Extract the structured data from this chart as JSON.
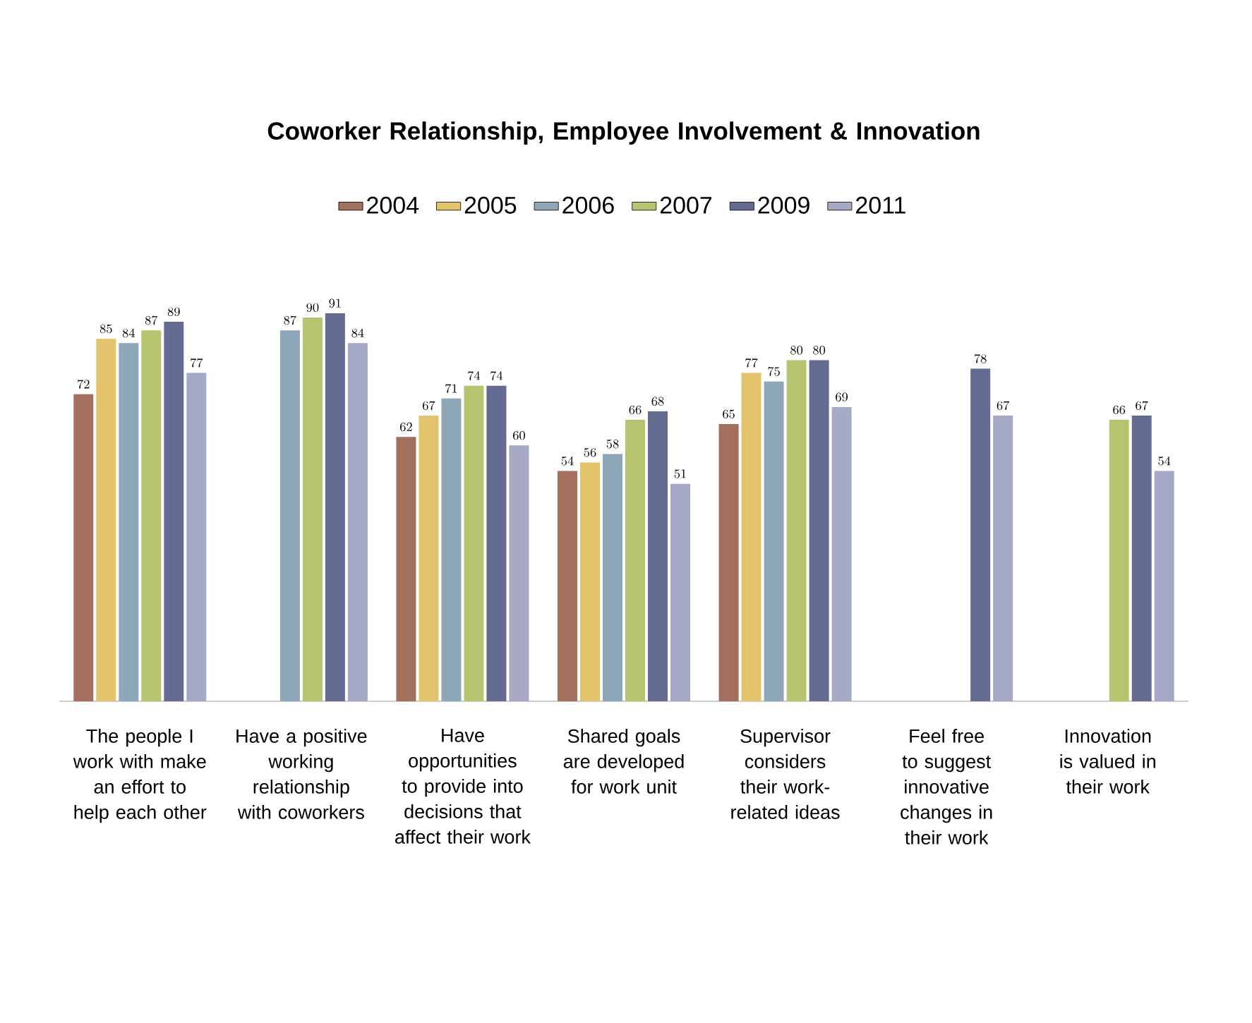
{
  "chart_data": {
    "type": "bar",
    "title": "Coworker Relationship, Employee Involvement & Innovation",
    "categories": [
      "The people I work with make an effort to help each other",
      "Have a positive working relationship with coworkers",
      "Have opportunities to provide into decisions that affect their work",
      "Shared goals are developed for work unit",
      "Supervisor considers their work-related ideas",
      "Feel free to suggest innovative changes in their work",
      "Innovation is valued in their work"
    ],
    "series": [
      {
        "name": "2004",
        "color": "#a3705e",
        "values": [
          72,
          null,
          62,
          54,
          65,
          null,
          null
        ]
      },
      {
        "name": "2005",
        "color": "#e3c36b",
        "values": [
          85,
          null,
          67,
          56,
          77,
          null,
          null
        ]
      },
      {
        "name": "2006",
        "color": "#8ea8ba",
        "values": [
          84,
          87,
          71,
          58,
          75,
          null,
          null
        ]
      },
      {
        "name": "2007",
        "color": "#b5c46f",
        "values": [
          87,
          90,
          74,
          66,
          80,
          null,
          66
        ]
      },
      {
        "name": "2009",
        "color": "#656c92",
        "values": [
          89,
          91,
          74,
          68,
          80,
          78,
          67
        ]
      },
      {
        "name": "2011",
        "color": "#a6a9c6",
        "values": [
          77,
          84,
          60,
          51,
          69,
          67,
          54
        ]
      }
    ],
    "data_labels": true,
    "legend": "top",
    "grid": false
  }
}
